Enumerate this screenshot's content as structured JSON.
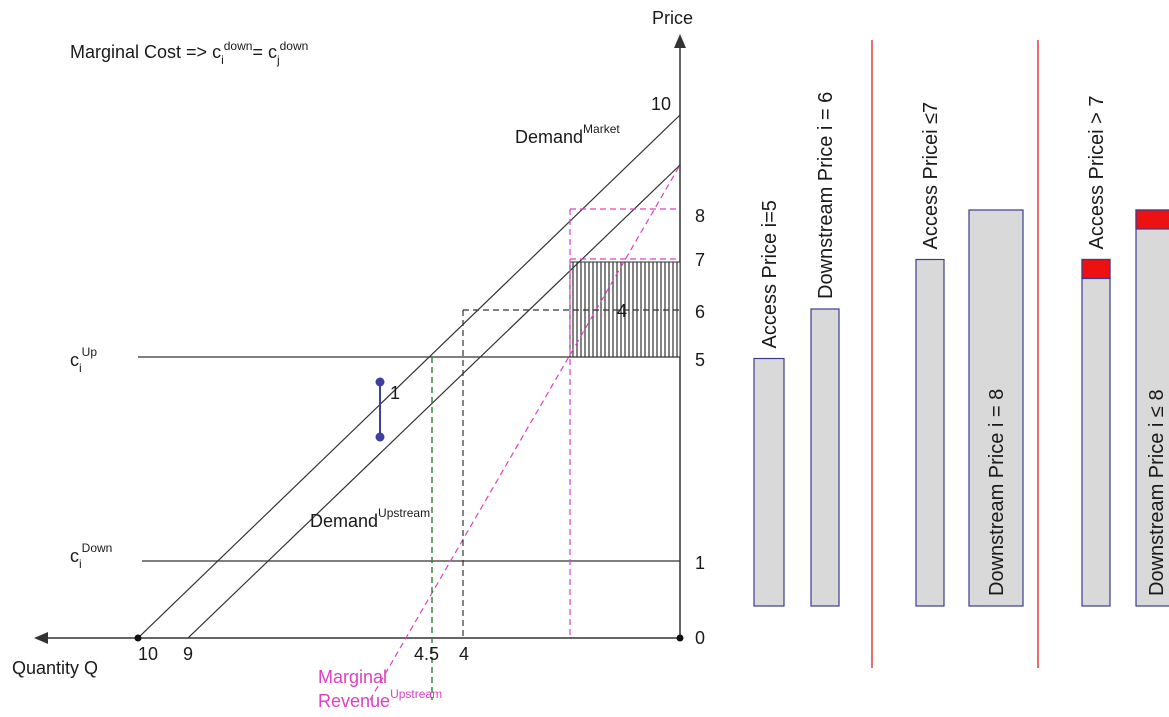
{
  "title_prefix": "Marginal Cost => c",
  "title_sup1": "down",
  "title_mid": "= c",
  "title_sup2": "down",
  "title_sub_i": "i",
  "title_sub_j": "j",
  "axis_y_label": "Price",
  "axis_x_label": "Quantity Q",
  "demand_market_label": "Demand",
  "demand_market_sup": "Market",
  "demand_upstream_label": "Demand",
  "demand_upstream_sup": "Upstream",
  "c_up_label": "c",
  "c_up_sub": "i",
  "c_up_sup": "Up",
  "c_down_label": "c",
  "c_down_sub": "i",
  "c_down_sup": "Down",
  "mr_line1": "Marginal",
  "mr_line2": "Revenue",
  "mr_sup": "Upstream",
  "rect_label": "4",
  "gap_label": "1",
  "price_ticks": [
    "10",
    "8",
    "7",
    "6",
    "5",
    "1",
    "0"
  ],
  "qty_ticks": [
    "10",
    "9",
    "4.5",
    "4"
  ],
  "panels": [
    {
      "bars": [
        {
          "label": "Access Price i=5",
          "value": 5,
          "red": false
        },
        {
          "label": "Downstream Price i = 6",
          "value": 6,
          "red": false
        }
      ]
    },
    {
      "bars": [
        {
          "label": "Access Pricei ≤7",
          "value": 7,
          "red": false
        },
        {
          "label": "Downstream Price i = 8",
          "value": 8,
          "red": false
        }
      ]
    },
    {
      "bars": [
        {
          "label": "Access Pricei > 7",
          "value": 7,
          "red": true
        },
        {
          "label": "Downstream Price i ≤ 8",
          "value": 8,
          "red": true
        }
      ]
    }
  ],
  "colors": {
    "line": "#333333",
    "pink": "#e040c0",
    "green": "#2e7d32",
    "blue": "#3f3fa0",
    "bar_fill": "#d9d9d9",
    "bar_stroke": "#3b3b8f",
    "red": "#ee1111",
    "divider": "#e02020"
  }
}
